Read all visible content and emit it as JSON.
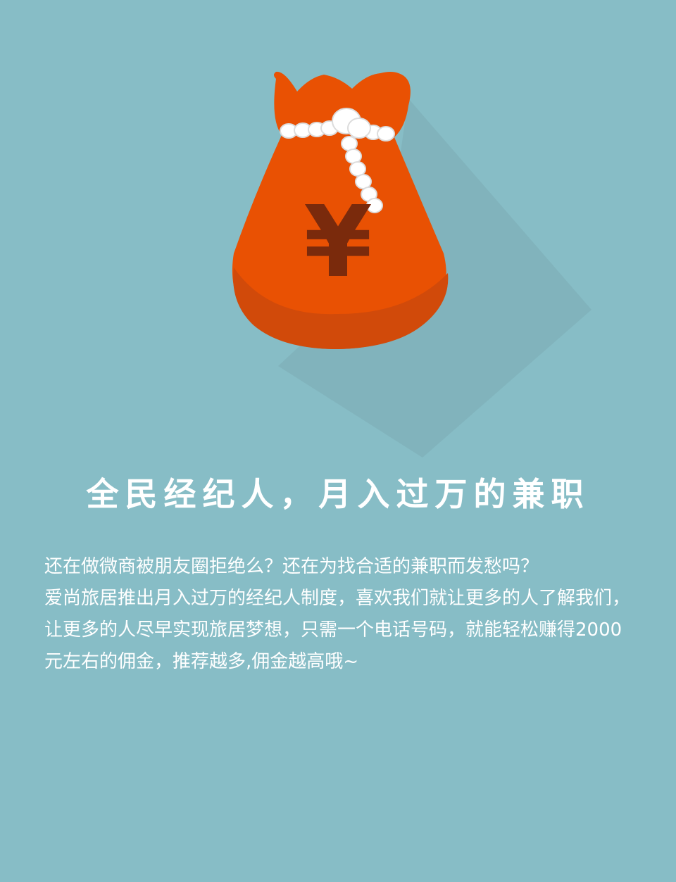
{
  "illustration": {
    "icon": "money-bag-icon",
    "symbol": "¥",
    "bag_color": "#e95103",
    "bag_shade_color": "#d14a0a",
    "symbol_color": "#7a2a0c",
    "rope_color": "#ffffff"
  },
  "headline": "全民经纪人，月入过万的兼职",
  "description": {
    "line1": "还在做微商被朋友圈拒绝么？还在为找合适的兼职而发愁吗？",
    "line2": "爱尚旅居推出月入过万的经纪人制度，喜欢我们就让更多的人了解我们，让更多的人尽早实现旅居梦想，只需一个电话号码，就能轻松赚得2000元左右的佣金，推荐越多,佣金越高哦~"
  },
  "colors": {
    "background": "#87bdc6",
    "text": "#ffffff"
  }
}
